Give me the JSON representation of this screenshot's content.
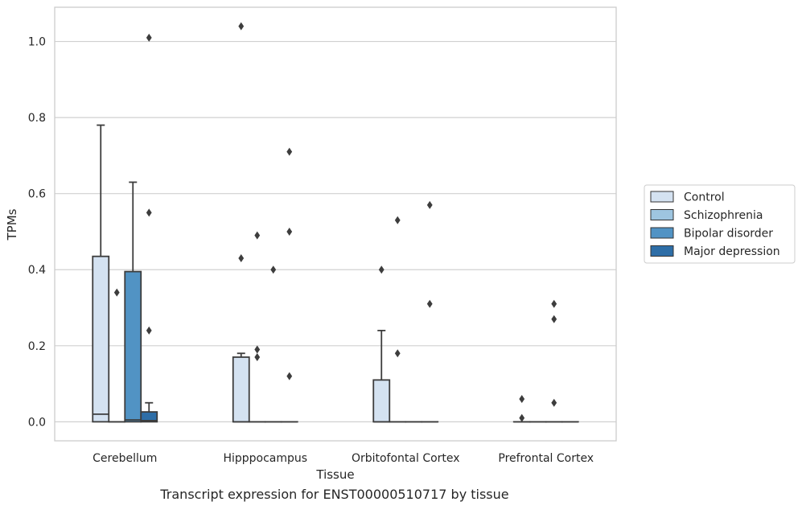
{
  "caption": "Transcript expression for ENST00000510717 by tissue",
  "chart_data": {
    "type": "box",
    "xlabel": "Tissue",
    "ylabel": "TPMs",
    "ylim": [
      -0.05,
      1.09
    ],
    "yticks": [
      0.0,
      0.2,
      0.4,
      0.6,
      0.8,
      1.0
    ],
    "ytick_labels": [
      "0.0",
      "0.2",
      "0.4",
      "0.6",
      "0.8",
      "1.0"
    ],
    "grid": "horizontal",
    "legend_position": "right",
    "categories": [
      "Cerebellum",
      "Hipppocampus",
      "Orbitofontal Cortex",
      "Prefrontal Cortex"
    ],
    "series": [
      {
        "name": "Control",
        "color": "#d4e2f1",
        "boxes": [
          {
            "q1": 0.0,
            "median": 0.02,
            "q3": 0.435,
            "whisker_low": 0.0,
            "whisker_high": 0.78,
            "outliers": []
          },
          {
            "q1": 0.0,
            "median": 0.0,
            "q3": 0.17,
            "whisker_low": 0.0,
            "whisker_high": 0.18,
            "outliers": [
              0.43,
              1.04
            ]
          },
          {
            "q1": 0.0,
            "median": 0.0,
            "q3": 0.11,
            "whisker_low": 0.0,
            "whisker_high": 0.24,
            "outliers": [
              0.4
            ]
          },
          {
            "q1": 0.0,
            "median": 0.0,
            "q3": 0.0,
            "whisker_low": 0.0,
            "whisker_high": 0.0,
            "outliers": [
              0.01,
              0.06
            ]
          }
        ]
      },
      {
        "name": "Schizophrenia",
        "color": "#9ec5e0",
        "boxes": [
          {
            "q1": 0.0,
            "median": 0.0,
            "q3": 0.0,
            "whisker_low": 0.0,
            "whisker_high": 0.0,
            "outliers": [
              0.34
            ]
          },
          {
            "q1": 0.0,
            "median": 0.0,
            "q3": 0.0,
            "whisker_low": 0.0,
            "whisker_high": 0.0,
            "outliers": [
              0.17,
              0.19,
              0.49
            ]
          },
          {
            "q1": 0.0,
            "median": 0.0,
            "q3": 0.0,
            "whisker_low": 0.0,
            "whisker_high": 0.0,
            "outliers": [
              0.18,
              0.53
            ]
          },
          {
            "q1": 0.0,
            "median": 0.0,
            "q3": 0.0,
            "whisker_low": 0.0,
            "whisker_high": 0.0,
            "outliers": []
          }
        ]
      },
      {
        "name": "Bipolar disorder",
        "color": "#5193c4",
        "boxes": [
          {
            "q1": 0.0,
            "median": 0.005,
            "q3": 0.395,
            "whisker_low": 0.0,
            "whisker_high": 0.63,
            "outliers": []
          },
          {
            "q1": 0.0,
            "median": 0.0,
            "q3": 0.0,
            "whisker_low": 0.0,
            "whisker_high": 0.0,
            "outliers": [
              0.4
            ]
          },
          {
            "q1": 0.0,
            "median": 0.0,
            "q3": 0.0,
            "whisker_low": 0.0,
            "whisker_high": 0.0,
            "outliers": []
          },
          {
            "q1": 0.0,
            "median": 0.0,
            "q3": 0.0,
            "whisker_low": 0.0,
            "whisker_high": 0.0,
            "outliers": [
              0.05,
              0.27,
              0.31
            ]
          }
        ]
      },
      {
        "name": "Major depression",
        "color": "#2e6ea7",
        "boxes": [
          {
            "q1": 0.0,
            "median": 0.003,
            "q3": 0.026,
            "whisker_low": 0.0,
            "whisker_high": 0.05,
            "outliers": [
              0.24,
              0.55,
              1.01
            ]
          },
          {
            "q1": 0.0,
            "median": 0.0,
            "q3": 0.0,
            "whisker_low": 0.0,
            "whisker_high": 0.0,
            "outliers": [
              0.12,
              0.5,
              0.71
            ]
          },
          {
            "q1": 0.0,
            "median": 0.0,
            "q3": 0.0,
            "whisker_low": 0.0,
            "whisker_high": 0.0,
            "outliers": [
              0.31,
              0.57
            ]
          },
          {
            "q1": 0.0,
            "median": 0.0,
            "q3": 0.0,
            "whisker_low": 0.0,
            "whisker_high": 0.0,
            "outliers": []
          }
        ]
      }
    ]
  }
}
